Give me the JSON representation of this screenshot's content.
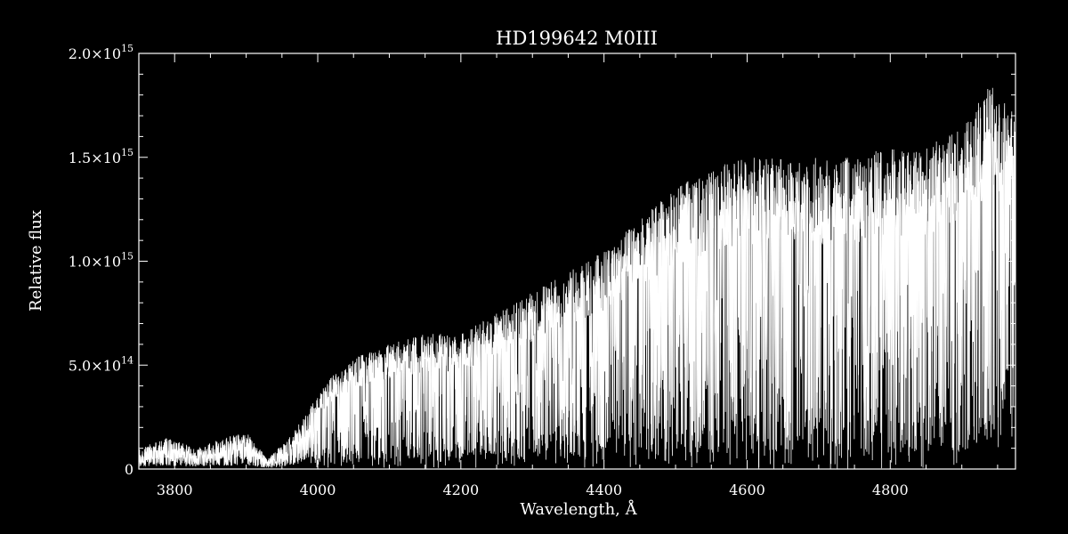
{
  "chart_data": {
    "type": "line",
    "title": "HD199642   M0III",
    "xlabel": "Wavelength, Å",
    "ylabel": "Relative flux",
    "xlim": [
      3750,
      4975
    ],
    "ylim": [
      0,
      2000000000000000.0
    ],
    "x_ticks": [
      {
        "value": 3800,
        "label": "3800"
      },
      {
        "value": 4000,
        "label": "4000"
      },
      {
        "value": 4200,
        "label": "4200"
      },
      {
        "value": 4400,
        "label": "4400"
      },
      {
        "value": 4600,
        "label": "4600"
      },
      {
        "value": 4800,
        "label": "4800"
      }
    ],
    "y_ticks": [
      {
        "value": 0,
        "mantissa": "0",
        "exponent": ""
      },
      {
        "value": 500000000000000.0,
        "mantissa": "5.0×10",
        "exponent": "14"
      },
      {
        "value": 1000000000000000.0,
        "mantissa": "1.0×10",
        "exponent": "15"
      },
      {
        "value": 1500000000000000.0,
        "mantissa": "1.5×10",
        "exponent": "15"
      },
      {
        "value": 2000000000000000.0,
        "mantissa": "2.0×10",
        "exponent": "15"
      }
    ],
    "grid": false,
    "colors": {
      "background": "#000000",
      "foreground": "#ffffff"
    },
    "series": [
      {
        "style": "dense absorption-line spectrum",
        "x": [
          3750,
          3790,
          3830,
          3870,
          3900,
          3930,
          3960,
          3990,
          4020,
          4060,
          4100,
          4150,
          4200,
          4250,
          4300,
          4350,
          4400,
          4450,
          4500,
          4550,
          4600,
          4650,
          4700,
          4750,
          4800,
          4850,
          4900,
          4940,
          4975
        ],
        "y": [
          100000000000000.0,
          150000000000000.0,
          100000000000000.0,
          150000000000000.0,
          180000000000000.0,
          50000000000000.0,
          150000000000000.0,
          300000000000000.0,
          450000000000000.0,
          550000000000000.0,
          600000000000000.0,
          650000000000000.0,
          650000000000000.0,
          750000000000000.0,
          850000000000000.0,
          950000000000000.0,
          1050000000000000.0,
          1200000000000000.0,
          1350000000000000.0,
          1450000000000000.0,
          1500000000000000.0,
          1500000000000000.0,
          1500000000000000.0,
          1500000000000000.0,
          1550000000000000.0,
          1550000000000000.0,
          1650000000000000.0,
          1850000000000000.0,
          1700000000000000.0
        ]
      }
    ]
  }
}
